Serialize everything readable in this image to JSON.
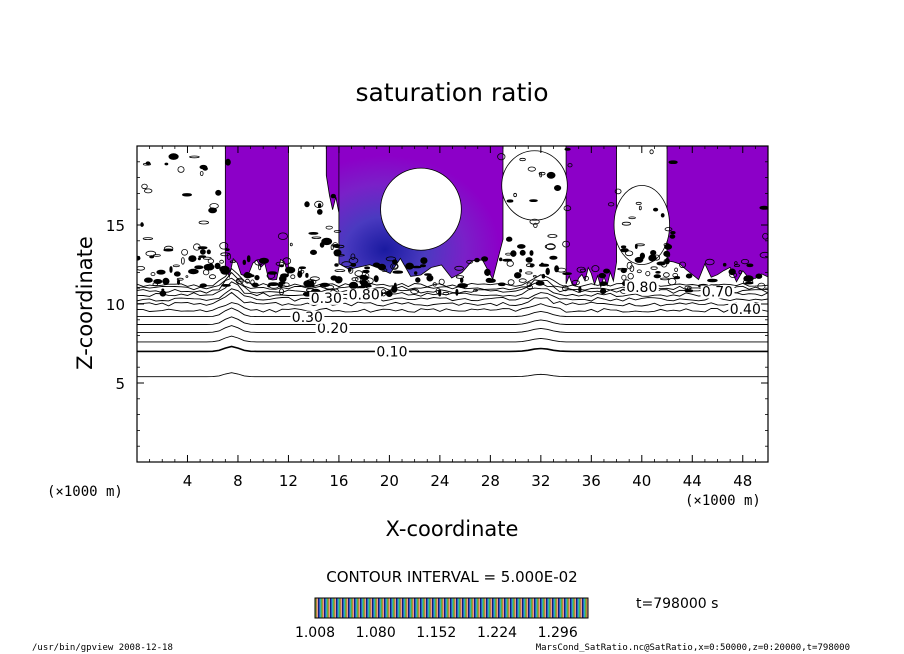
{
  "chart_data": {
    "type": "contour",
    "title": "saturation ratio",
    "xlabel": "X-coordinate",
    "ylabel": "Z-coordinate",
    "x_unit_left": "(×1000 m)",
    "x_unit_right": "(×1000 m)",
    "xlim": [
      0,
      50
    ],
    "ylim": [
      0,
      20
    ],
    "xticks": [
      4,
      8,
      12,
      16,
      20,
      24,
      28,
      32,
      36,
      40,
      44,
      48
    ],
    "yticks": [
      5,
      10,
      15
    ],
    "contour_interval_label": "CONTOUR INTERVAL = 5.000E-02",
    "time_label": "t=798000 s",
    "colorbar": {
      "min": 1.008,
      "max": 1.332,
      "tick_labels": [
        "1.008",
        "1.080",
        "1.152",
        "1.224",
        "1.296"
      ],
      "colormap": "rainbow"
    },
    "contour_labels": [
      {
        "text": "0.10",
        "x": 20.2,
        "z": 6.8
      },
      {
        "text": "0.20",
        "x": 15.5,
        "z": 8.3
      },
      {
        "text": "0.30",
        "x": 13.5,
        "z": 9.0
      },
      {
        "text": "0.40",
        "x": 48.2,
        "z": 9.5
      },
      {
        "text": "0.70",
        "x": 46.0,
        "z": 10.6
      },
      {
        "text": "0.30",
        "x": 15.0,
        "z": 10.2
      },
      {
        "text": "0.80",
        "x": 40.0,
        "z": 10.9
      },
      {
        "text": "0.80",
        "x": 18.0,
        "z": 10.4
      }
    ],
    "baseline_contours_z": [
      5.4,
      7.0,
      7.6,
      8.2,
      8.7,
      9.2,
      9.6,
      10.0,
      10.3,
      10.6,
      10.8,
      11.0,
      11.2
    ],
    "supersaturated_regions": [
      {
        "x_range": [
          7.0,
          12.0
        ],
        "z_range": [
          11.5,
          19.8
        ]
      },
      {
        "x_range": [
          15.0,
          19.0
        ],
        "z_range": [
          15.5,
          19.8
        ]
      },
      {
        "x_range": [
          16.0,
          29.0
        ],
        "z_range": [
          11.5,
          19.8
        ]
      },
      {
        "x_range": [
          34.0,
          38.0
        ],
        "z_range": [
          11.0,
          19.8
        ]
      },
      {
        "x_range": [
          42.0,
          50.0
        ],
        "z_range": [
          11.3,
          19.8
        ]
      }
    ]
  },
  "footer": {
    "left": "/usr/bin/gpview  2008-12-18",
    "right": "MarsCond_SatRatio.nc@SatRatio,x=0:50000,z=0:20000,t=798000"
  },
  "colors": {
    "background": "#ffffff",
    "purple": "#8c00c8",
    "deep_blue": "#1a1aa0",
    "axis": "#000000"
  }
}
